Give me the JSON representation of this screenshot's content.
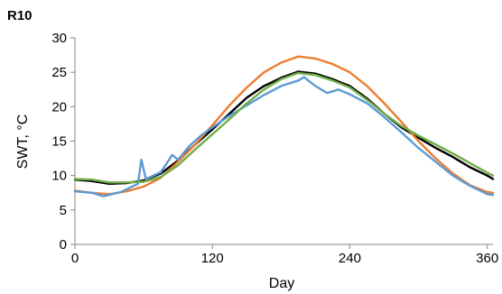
{
  "chart_data": {
    "type": "line",
    "title": "R10",
    "xlabel": "Day",
    "ylabel": "SWT, °C",
    "xlim": [
      0,
      365
    ],
    "ylim": [
      0,
      30
    ],
    "x_ticks": [
      0,
      120,
      240,
      360
    ],
    "y_ticks": [
      0,
      5,
      10,
      15,
      20,
      25,
      30
    ],
    "grid": false,
    "legend": "none",
    "series": [
      {
        "color": "#000000",
        "x": [
          0,
          15,
          30,
          45,
          60,
          75,
          90,
          105,
          120,
          135,
          150,
          165,
          180,
          195,
          210,
          225,
          240,
          255,
          270,
          285,
          300,
          315,
          330,
          345,
          360,
          365
        ],
        "y": [
          9.4,
          9.2,
          8.8,
          8.9,
          9.3,
          10.3,
          12.2,
          14.5,
          16.7,
          19.0,
          21.3,
          23.0,
          24.2,
          25.1,
          24.8,
          24.0,
          23.0,
          21.2,
          19.0,
          17.0,
          15.5,
          14.0,
          12.7,
          11.2,
          10.0,
          9.5
        ]
      },
      {
        "color": "#ed7d31",
        "x": [
          0,
          15,
          30,
          45,
          60,
          75,
          90,
          105,
          120,
          135,
          150,
          165,
          180,
          195,
          210,
          225,
          240,
          255,
          270,
          285,
          300,
          315,
          330,
          345,
          360,
          365
        ],
        "y": [
          7.8,
          7.5,
          7.3,
          7.7,
          8.4,
          9.7,
          12.0,
          14.5,
          17.3,
          20.2,
          22.8,
          25.0,
          26.4,
          27.3,
          27.0,
          26.2,
          25.0,
          23.0,
          20.5,
          17.8,
          15.0,
          12.5,
          10.3,
          8.6,
          7.6,
          7.5
        ]
      },
      {
        "color": "#5b9bd5",
        "x": [
          0,
          15,
          25,
          40,
          55,
          58,
          62,
          75,
          85,
          90,
          100,
          110,
          120,
          135,
          150,
          165,
          180,
          195,
          200,
          210,
          220,
          230,
          240,
          255,
          270,
          285,
          300,
          315,
          330,
          345,
          360,
          365
        ],
        "y": [
          7.7,
          7.5,
          7.0,
          7.6,
          8.8,
          12.3,
          9.5,
          10.5,
          13.0,
          12.3,
          14.3,
          15.8,
          17.0,
          18.7,
          20.2,
          21.7,
          23.0,
          23.8,
          24.3,
          23.0,
          22.0,
          22.5,
          21.8,
          20.5,
          18.5,
          16.3,
          14.0,
          12.0,
          10.0,
          8.5,
          7.3,
          7.2
        ]
      },
      {
        "color": "#70ad47",
        "x": [
          0,
          15,
          30,
          45,
          60,
          75,
          90,
          105,
          120,
          135,
          150,
          165,
          180,
          195,
          210,
          225,
          240,
          255,
          270,
          285,
          300,
          315,
          330,
          345,
          360,
          365
        ],
        "y": [
          9.5,
          9.4,
          9.0,
          9.0,
          9.1,
          9.8,
          11.5,
          13.8,
          16.0,
          18.2,
          20.5,
          22.5,
          24.0,
          24.9,
          24.6,
          23.8,
          22.8,
          21.0,
          19.0,
          17.2,
          15.8,
          14.5,
          13.2,
          11.8,
          10.4,
          10.0
        ]
      }
    ]
  }
}
